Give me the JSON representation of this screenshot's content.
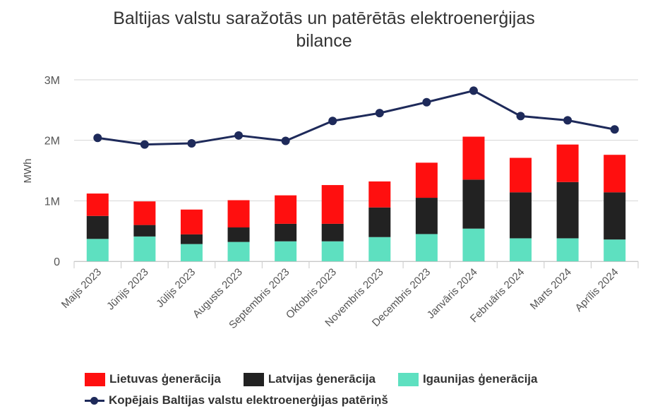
{
  "chart_data": {
    "type": "bar",
    "title_line1": "Baltijas valstu saražotās un patērētās elektroenerģijas",
    "title_line2": "bilance",
    "ylabel": "MWh",
    "ylim": [
      0,
      3000000
    ],
    "yticks": [
      {
        "value": 0,
        "label": "0"
      },
      {
        "value": 1000000,
        "label": "1M"
      },
      {
        "value": 2000000,
        "label": "2M"
      },
      {
        "value": 3000000,
        "label": "3M"
      }
    ],
    "categories": [
      "Maijs 2023",
      "Jūnijs 2023",
      "Jūlijs 2023",
      "Augusts 2023",
      "Septembris 2023",
      "Oktobris 2023",
      "Novembris 2023",
      "Decembris 2023",
      "Janvāris 2024",
      "Februāris 2024",
      "Marts 2024",
      "Aprīlis 2024"
    ],
    "series": [
      {
        "name": "Igaunijas ģenerācija",
        "kind": "bar",
        "color": "#5ee0c0",
        "values": [
          370000,
          410000,
          285000,
          320000,
          330000,
          330000,
          400000,
          450000,
          540000,
          380000,
          380000,
          360000
        ]
      },
      {
        "name": "Latvijas ģenerācija",
        "kind": "bar",
        "color": "#222222",
        "values": [
          380000,
          190000,
          160000,
          240000,
          290000,
          290000,
          490000,
          600000,
          810000,
          760000,
          930000,
          780000
        ]
      },
      {
        "name": "Lietuvas ģenerācija",
        "kind": "bar",
        "color": "#ff0f0f",
        "values": [
          370000,
          390000,
          410000,
          450000,
          470000,
          640000,
          430000,
          580000,
          710000,
          570000,
          620000,
          620000
        ]
      },
      {
        "name": "Kopējais Baltijas valstu elektroenerģijas patēriņš",
        "kind": "line",
        "color": "#1e2a5a",
        "values": [
          2040000,
          1930000,
          1950000,
          2080000,
          1990000,
          2320000,
          2450000,
          2630000,
          2820000,
          2400000,
          2330000,
          2180000
        ]
      }
    ],
    "legend": {
      "position": "bottom",
      "row1": [
        "Lietuvas ģenerācija",
        "Latvijas ģenerācija",
        "Igaunijas ģenerācija"
      ],
      "row2": [
        "Kopējais Baltijas valstu elektroenerģijas patēriņš"
      ]
    },
    "grid": true
  }
}
